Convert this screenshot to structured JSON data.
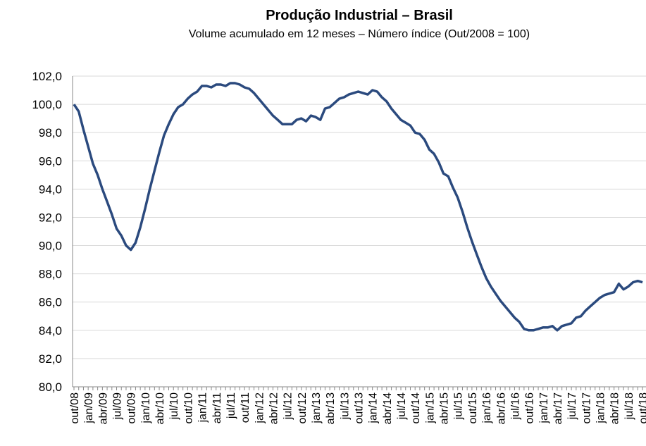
{
  "chart_data": {
    "type": "line",
    "title": "Produção Industrial – Brasil",
    "subtitle": "Volume acumulado em 12 meses – Número índice (Out/2008 = 100)",
    "categories": [
      "out/08",
      null,
      null,
      "jan/09",
      null,
      null,
      "abr/09",
      null,
      null,
      "jul/09",
      null,
      null,
      "out/09",
      null,
      null,
      "jan/10",
      null,
      null,
      "abr/10",
      null,
      null,
      "jul/10",
      null,
      null,
      "out/10",
      null,
      null,
      "jan/11",
      null,
      null,
      "abr/11",
      null,
      null,
      "jul/11",
      null,
      null,
      "out/11",
      null,
      null,
      "jan/12",
      null,
      null,
      "abr/12",
      null,
      null,
      "jul/12",
      null,
      null,
      "out/12",
      null,
      null,
      "jan/13",
      null,
      null,
      "abr/13",
      null,
      null,
      "jul/13",
      null,
      null,
      "out/13",
      null,
      null,
      "jan/14",
      null,
      null,
      "abr/14",
      null,
      null,
      "jul/14",
      null,
      null,
      "out/14",
      null,
      null,
      "jan/15",
      null,
      null,
      "abr/15",
      null,
      null,
      "jul/15",
      null,
      null,
      "out/15",
      null,
      null,
      "jan/16",
      null,
      null,
      "abr/16",
      null,
      null,
      "jul/16",
      null,
      null,
      "out/16",
      null,
      null,
      "jan/17",
      null,
      null,
      "abr/17",
      null,
      null,
      "jul/17",
      null,
      null,
      "out/17",
      null,
      null,
      "jan/18",
      null,
      null,
      "abr/18",
      null,
      null,
      "jul/18",
      null,
      null,
      "out/18"
    ],
    "values": [
      100.0,
      99.5,
      98.2,
      97.0,
      95.8,
      95.0,
      94.0,
      93.1,
      92.2,
      91.2,
      90.7,
      90.0,
      89.7,
      90.2,
      91.3,
      92.6,
      94.0,
      95.3,
      96.6,
      97.8,
      98.6,
      99.3,
      99.8,
      100.0,
      100.4,
      100.7,
      100.9,
      101.3,
      101.3,
      101.2,
      101.4,
      101.4,
      101.3,
      101.5,
      101.5,
      101.4,
      101.2,
      101.1,
      100.8,
      100.4,
      100.0,
      99.6,
      99.2,
      98.9,
      98.6,
      98.6,
      98.6,
      98.9,
      99.0,
      98.8,
      99.2,
      99.1,
      98.9,
      99.7,
      99.8,
      100.1,
      100.4,
      100.5,
      100.7,
      100.8,
      100.9,
      100.8,
      100.7,
      101.0,
      100.9,
      100.5,
      100.2,
      99.7,
      99.3,
      98.9,
      98.7,
      98.5,
      98.0,
      97.9,
      97.5,
      96.8,
      96.5,
      95.9,
      95.1,
      94.9,
      94.1,
      93.4,
      92.4,
      91.3,
      90.3,
      89.4,
      88.5,
      87.7,
      87.1,
      86.6,
      86.1,
      85.7,
      85.3,
      84.9,
      84.6,
      84.1,
      84.0,
      84.0,
      84.1,
      84.2,
      84.2,
      84.3,
      84.0,
      84.3,
      84.4,
      84.5,
      84.9,
      85.0,
      85.4,
      85.7,
      86.0,
      86.3,
      86.5,
      86.6,
      86.7,
      87.3,
      86.9,
      87.1,
      87.4,
      87.5,
      87.4
    ],
    "color": "#2b4a7e",
    "ylim": [
      80,
      102
    ],
    "yticks": [
      {
        "value": 80,
        "label": "80,0"
      },
      {
        "value": 82,
        "label": "82,0"
      },
      {
        "value": 84,
        "label": "84,0"
      },
      {
        "value": 86,
        "label": "86,0"
      },
      {
        "value": 88,
        "label": "88,0"
      },
      {
        "value": 90,
        "label": "90,0"
      },
      {
        "value": 92,
        "label": "92,0"
      },
      {
        "value": 94,
        "label": "94,0"
      },
      {
        "value": 96,
        "label": "96,0"
      },
      {
        "value": 98,
        "label": "98,0"
      },
      {
        "value": 100,
        "label": "100,0"
      },
      {
        "value": 102,
        "label": "102,0"
      }
    ],
    "grid": true
  }
}
